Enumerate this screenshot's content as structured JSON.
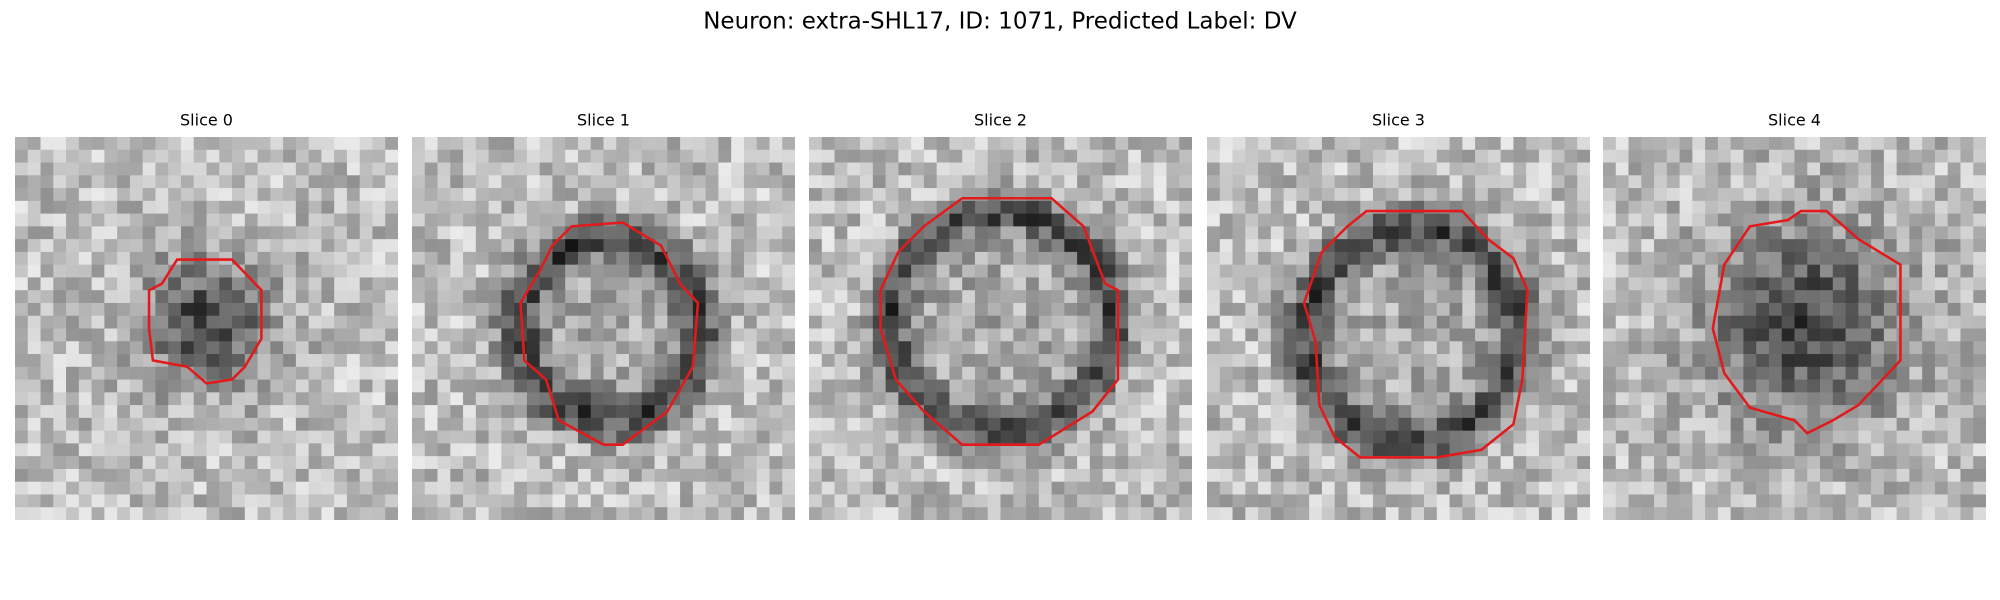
{
  "title": "Neuron: extra-SHL17, ID: 1071, Predicted Label: DV",
  "panels": [
    {
      "title": "Slice 0"
    },
    {
      "title": "Slice 1"
    },
    {
      "title": "Slice 2"
    },
    {
      "title": "Slice 3"
    },
    {
      "title": "Slice 4"
    }
  ]
}
